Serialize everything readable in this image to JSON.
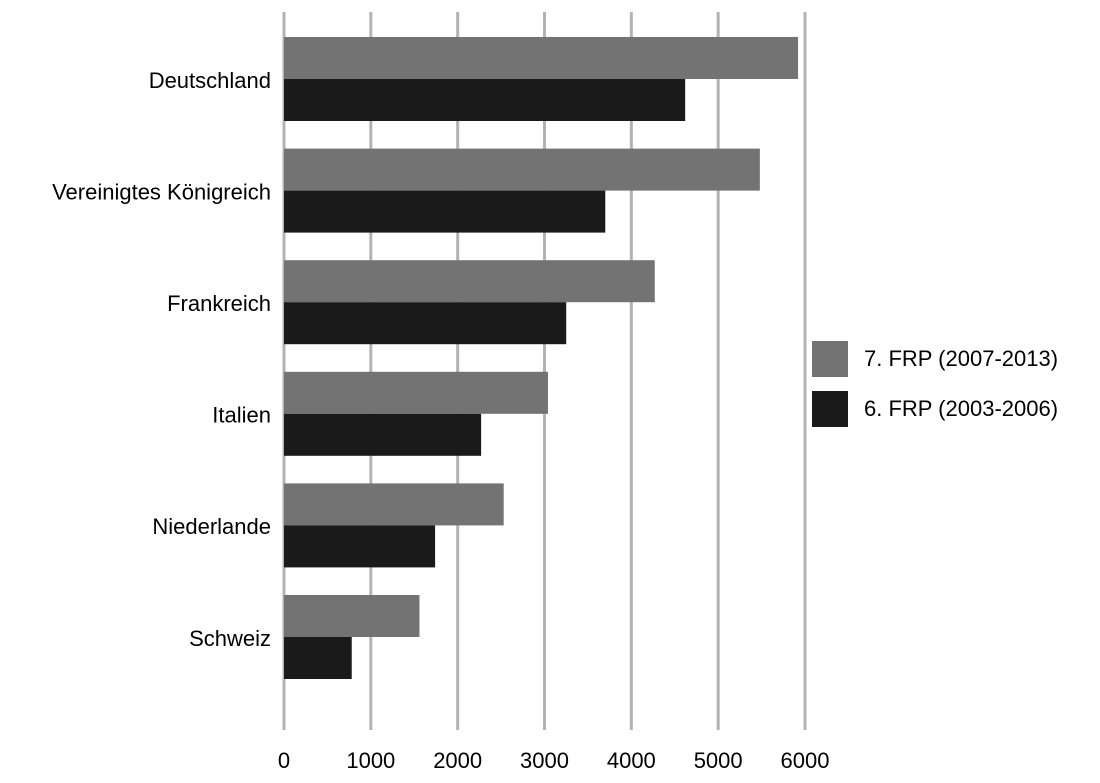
{
  "chart_data": {
    "type": "bar",
    "orientation": "horizontal",
    "title": "",
    "xlabel": "",
    "ylabel": "",
    "categories": [
      "Deutschland",
      "Vereinigtes Königreich",
      "Frankreich",
      "Italien",
      "Niederlande",
      "Schweiz"
    ],
    "series": [
      {
        "name": "7. FRP (2007-2013)",
        "color": "#737373",
        "values": [
          5920,
          5480,
          4270,
          3040,
          2530,
          1560
        ]
      },
      {
        "name": "6. FRP (2003-2006)",
        "color": "#1a1a1a",
        "values": [
          4620,
          3700,
          3250,
          2270,
          1740,
          780
        ]
      }
    ],
    "xlim": [
      0,
      6000
    ],
    "xticks": [
      0,
      1000,
      2000,
      3000,
      4000,
      5000,
      6000
    ],
    "xtick_labels": [
      "0",
      "1000",
      "2000",
      "3000",
      "4000",
      "5000",
      "6000"
    ],
    "grid": "vertical",
    "grid_color": "#b3b3b3",
    "legend_position": "right"
  }
}
